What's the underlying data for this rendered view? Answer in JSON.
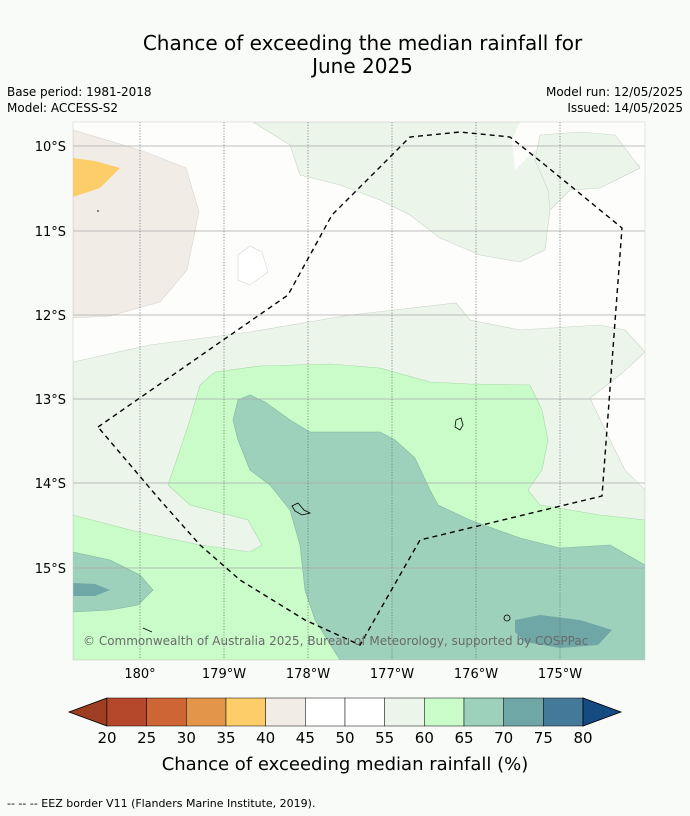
{
  "title_line1": "Chance of exceeding the median rainfall for",
  "title_line2": "June 2025",
  "base_period": "Base period: 1981-2018",
  "model": "Model: ACCESS-S2",
  "model_run": "Model run: 12/05/2025",
  "issued": "Issued: 14/05/2025",
  "lat_labels": [
    "10°S",
    "11°S",
    "12°S",
    "13°S",
    "14°S",
    "15°S"
  ],
  "lon_labels": [
    "180°",
    "179°W",
    "178°W",
    "177°W",
    "176°W",
    "175°W"
  ],
  "copyright": "© Commonwealth of Australia 2025, Bureau of Meteorology, supported by COSPPac",
  "colorbar": {
    "ticks": [
      "20",
      "25",
      "30",
      "35",
      "40",
      "45",
      "50",
      "55",
      "60",
      "65",
      "70",
      "75",
      "80"
    ],
    "colors": [
      "#9e3d22",
      "#b5482a",
      "#cd6535",
      "#e3964a",
      "#fdcd6a",
      "#f1ece6",
      "#ffffff",
      "#ffffff",
      "#ebf5ea",
      "#c9fcc9",
      "#9ed1bb",
      "#6fa7a6",
      "#45799a",
      "#144b82"
    ],
    "label": "Chance of exceeding median rainfall (%)"
  },
  "legend_line": "--  --  -- EEZ border V11 (Flanders Marine Institute, 2019)."
}
